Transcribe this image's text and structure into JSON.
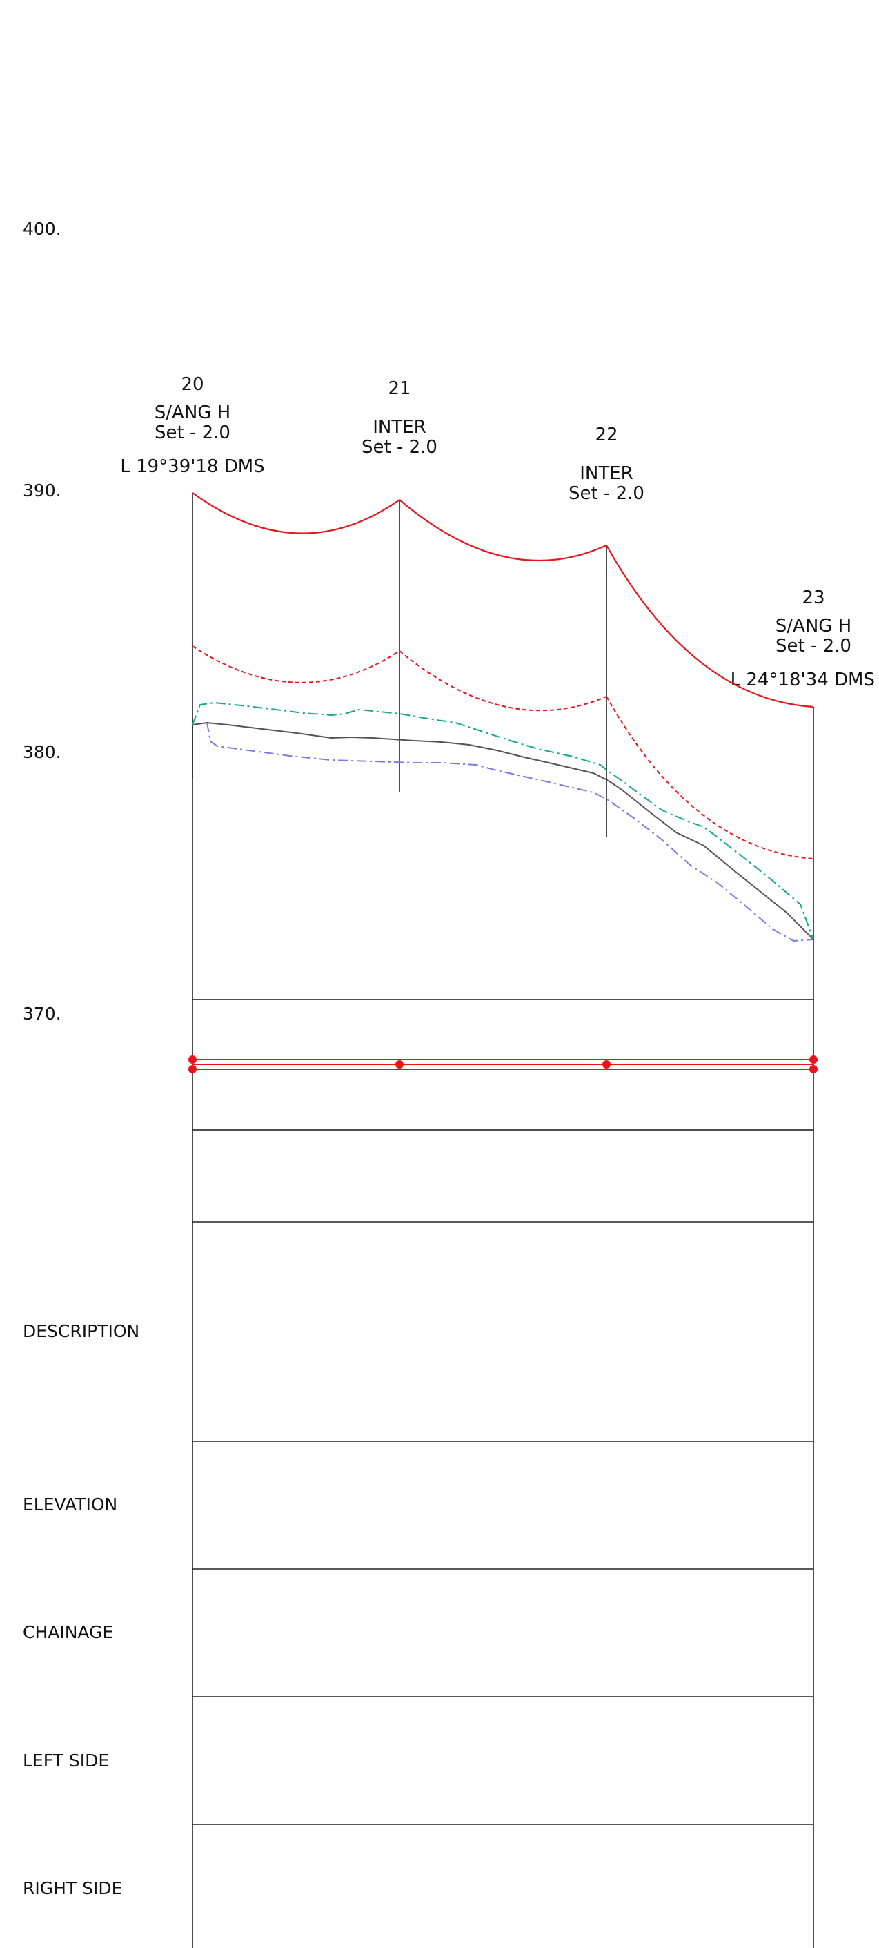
{
  "elevation_ticks": [
    "400.",
    "390.",
    "380.",
    "370."
  ],
  "row_labels": {
    "description": "DESCRIPTION",
    "elevation": "ELEVATION",
    "chainage": "CHAINAGE",
    "left_side": "LEFT SIDE",
    "right_side": "RIGHT SIDE"
  },
  "poles": [
    {
      "number": "20",
      "type": "S/ANG H",
      "setting": "Set - 2.0",
      "angle": "L 19°39'18 DMS"
    },
    {
      "number": "21",
      "type": "INTER",
      "setting": "Set - 2.0",
      "angle": ""
    },
    {
      "number": "22",
      "type": "INTER",
      "setting": "Set - 2.0",
      "angle": ""
    },
    {
      "number": "23",
      "type": "S/ANG H",
      "setting": "Set - 2.0",
      "angle": "L 24°18'34 DMS"
    }
  ],
  "colors": {
    "conductor": "#e8141b",
    "clearance": "#e8141b",
    "ground": "#555555",
    "upper_offset": "#12a889",
    "lower_offset": "#7a7ae6",
    "grid": "#222222",
    "marker": "#e8141b"
  }
}
